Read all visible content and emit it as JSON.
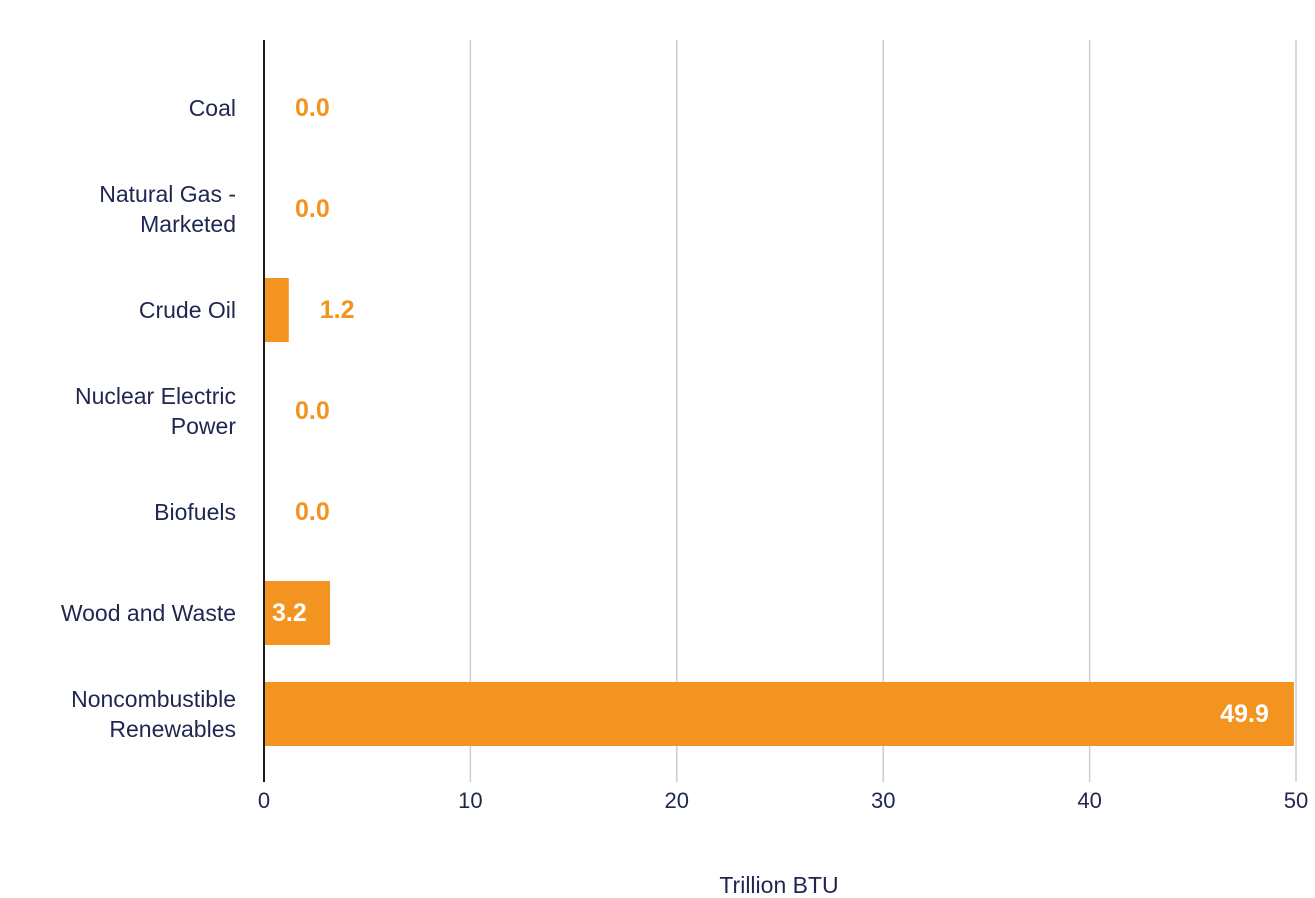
{
  "chart_data": {
    "type": "bar",
    "orientation": "horizontal",
    "title": "",
    "xlabel": "Trillion BTU",
    "ylabel": "",
    "xlim": [
      0,
      50
    ],
    "xticks": [
      "0",
      "10",
      "20",
      "30",
      "40",
      "50"
    ],
    "grid": true,
    "legend": "none",
    "categories": [
      [
        "Coal"
      ],
      [
        "Natural Gas -",
        "Marketed"
      ],
      [
        "Crude Oil"
      ],
      [
        "Nuclear Electric",
        "Power"
      ],
      [
        "Biofuels"
      ],
      [
        "Wood and Waste"
      ],
      [
        "Noncombustible",
        "Renewables"
      ]
    ],
    "values": [
      0.0,
      0.0,
      1.2,
      0.0,
      0.0,
      3.2,
      49.9
    ],
    "value_labels": [
      "0.0",
      "0.0",
      "1.2",
      "0.0",
      "0.0",
      "3.2",
      "49.9"
    ],
    "colors": {
      "bar": "#f39420",
      "label_outside": "#f39420",
      "label_inside": "#ffffff",
      "text": "#1f2650",
      "grid": "#cccccc",
      "axis": "#1a1a1a"
    }
  }
}
